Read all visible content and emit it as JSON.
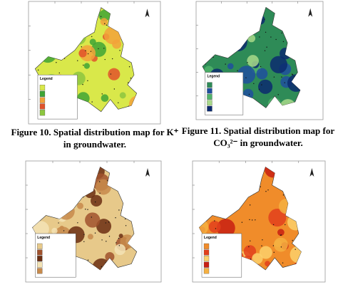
{
  "panels": [
    {
      "legend_title": "Legend"
    },
    {
      "legend_title": "Legend"
    },
    {
      "legend_title": "Legend"
    },
    {
      "legend_title": "Legend"
    }
  ],
  "captions": [
    {
      "line1": "Figure 10. Spatial distribution map for K⁺",
      "line2": "in groundwater."
    },
    {
      "line1": "Figure 11. Spatial distribution map for",
      "line2": "CO₃²⁻ in groundwater."
    }
  ]
}
